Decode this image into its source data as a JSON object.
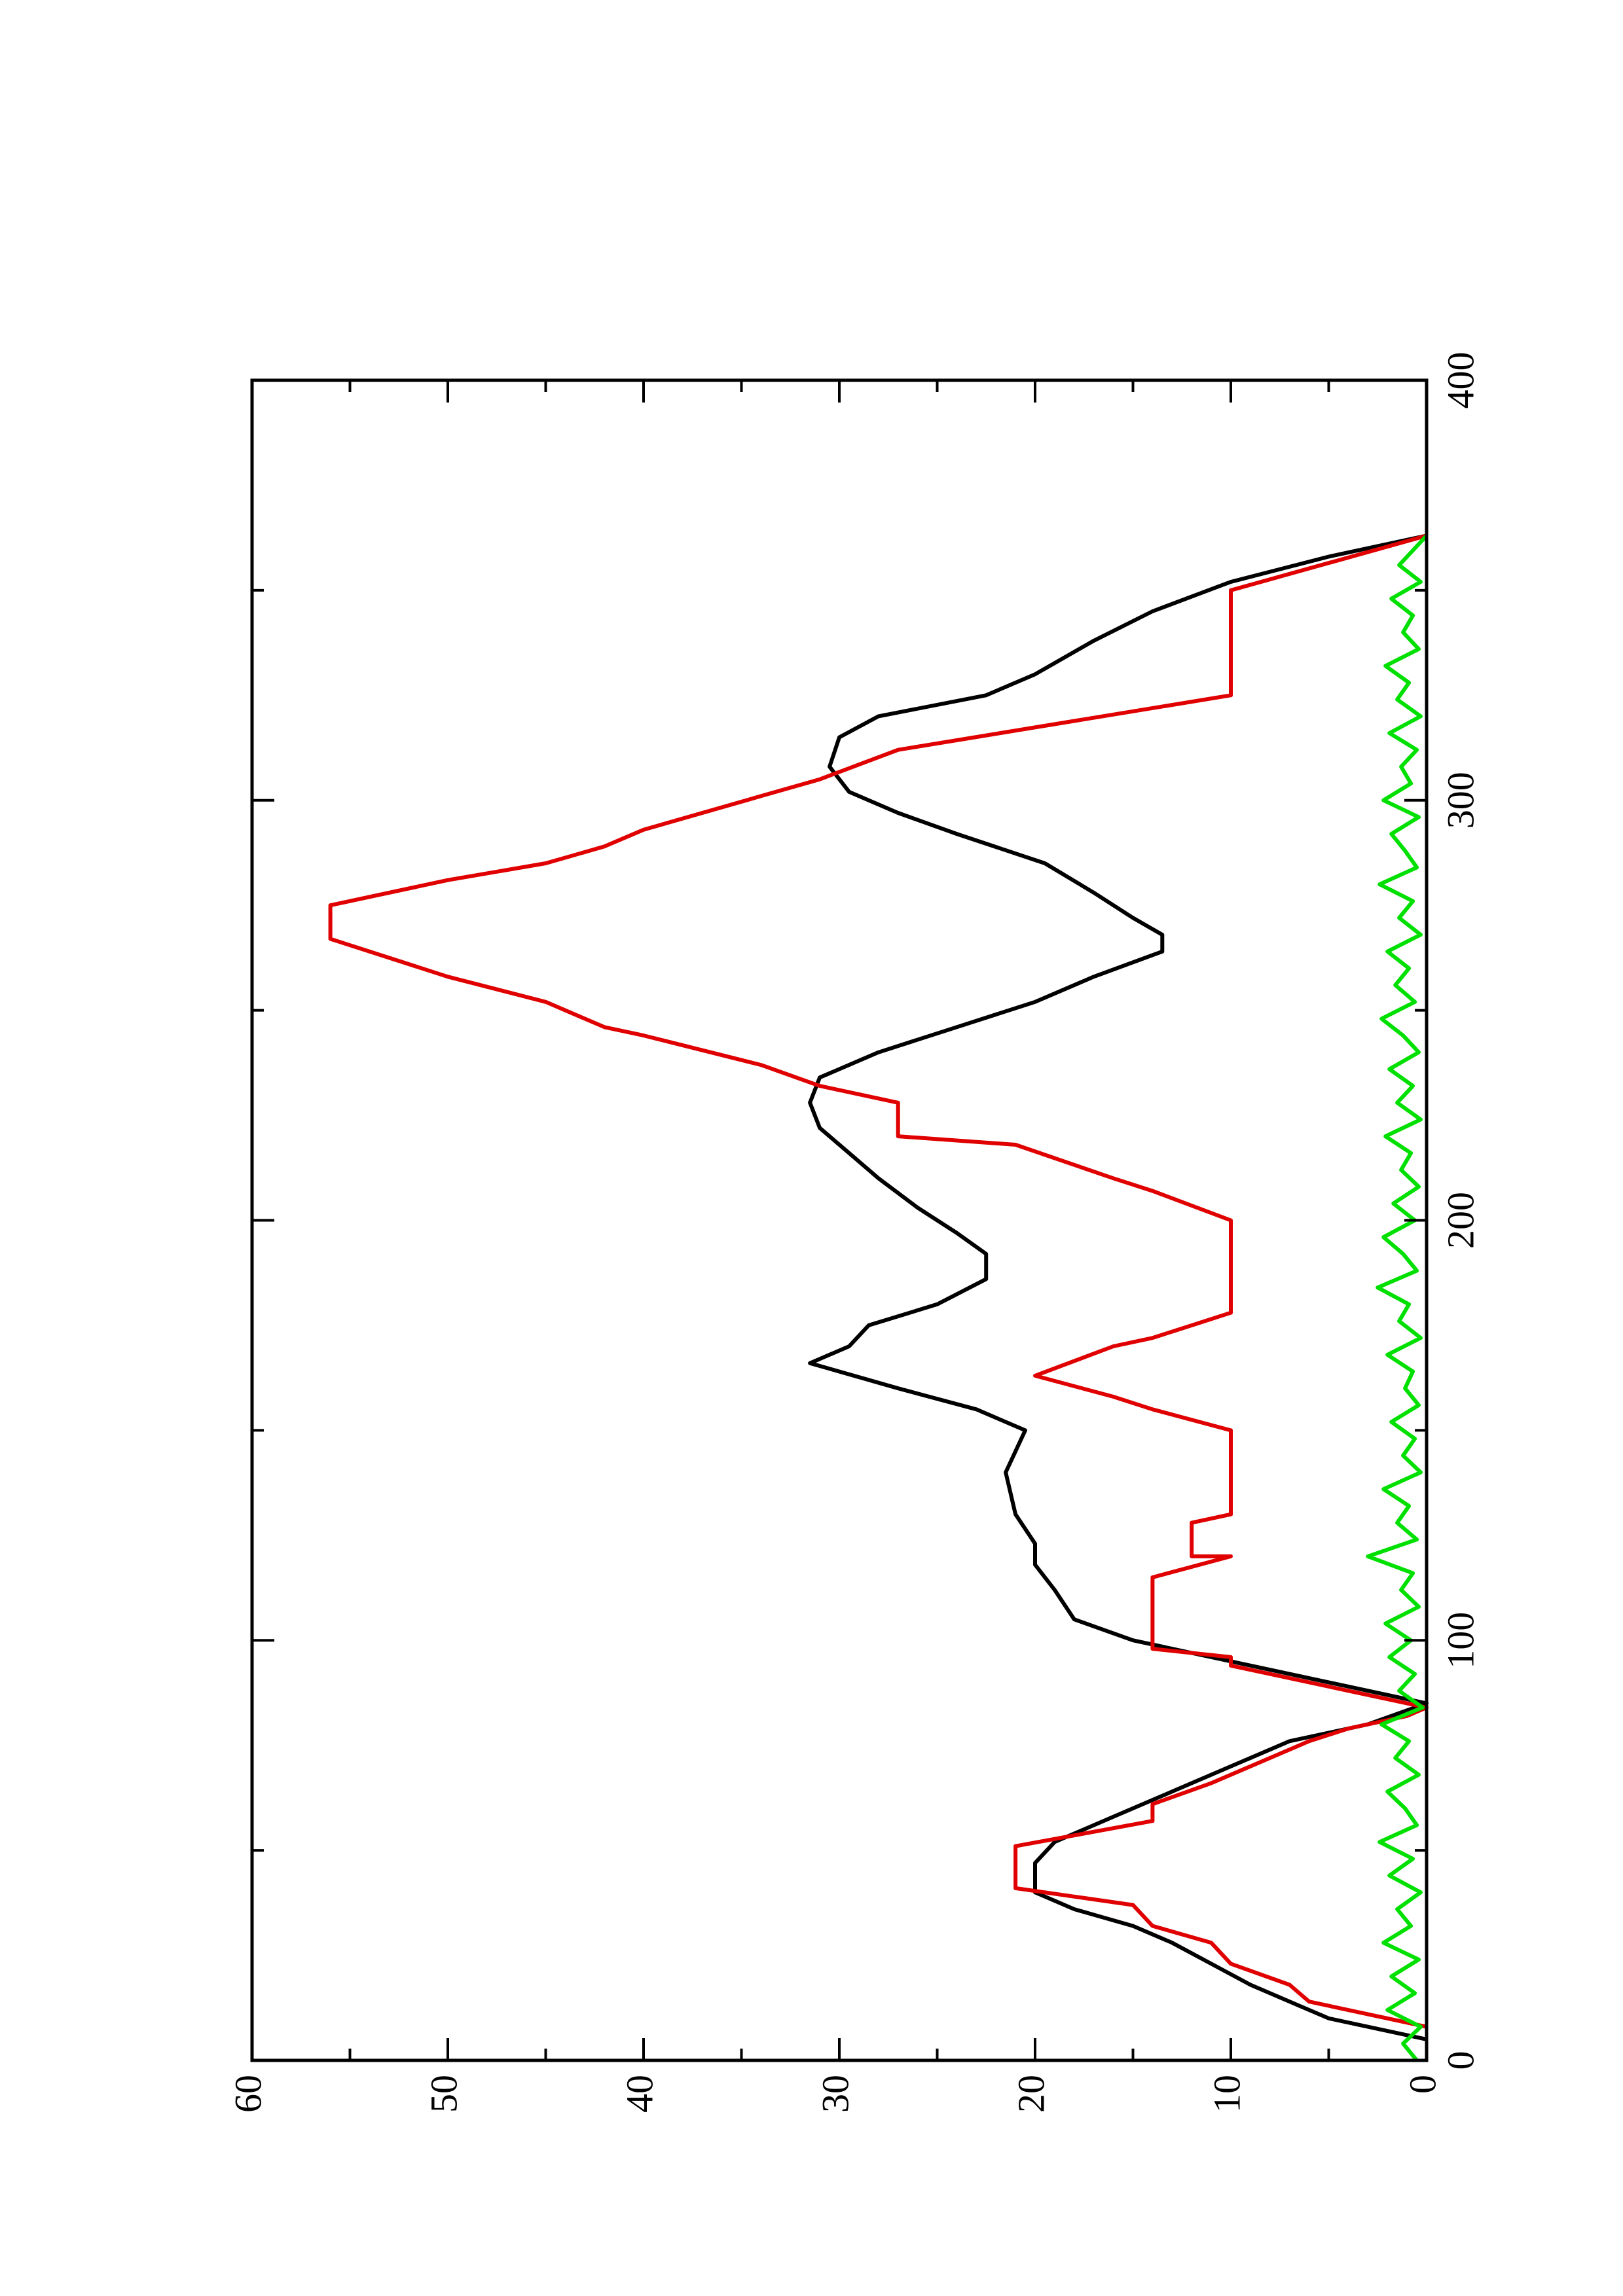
{
  "chart_data": {
    "type": "line",
    "xlim": [
      0,
      400
    ],
    "xticks": [
      0,
      100,
      200,
      300,
      400
    ],
    "xminorticks": [
      50,
      150,
      250,
      350
    ],
    "ylim": [
      0,
      60
    ],
    "yticks": [
      0,
      10,
      20,
      30,
      40,
      50,
      60
    ],
    "yminorticks": [
      5,
      15,
      25,
      35,
      45,
      55
    ],
    "series": [
      {
        "color": "#000000",
        "x": [
          5,
          10,
          13,
          18,
          23,
          28,
          32,
          36,
          40,
          47,
          52,
          58,
          64,
          70,
          76,
          80,
          85,
          90,
          95,
          100,
          105,
          112,
          118,
          123,
          130,
          140,
          150,
          155,
          160,
          166,
          170,
          175,
          180,
          186,
          192,
          197,
          203,
          210,
          216,
          222,
          228,
          234,
          240,
          246,
          252,
          258,
          264,
          268,
          272,
          278,
          285,
          292,
          297,
          302,
          308,
          315,
          320,
          325,
          330,
          338,
          345,
          352,
          358,
          363
        ],
        "values": [
          0,
          5,
          6.5,
          9,
          11,
          13,
          15,
          18,
          20,
          20,
          19,
          16,
          13,
          10,
          7,
          3,
          0,
          5,
          10,
          15,
          18,
          19,
          20,
          20,
          21,
          21.5,
          20.5,
          23,
          27,
          31.5,
          29.5,
          28.5,
          25,
          22.5,
          22.5,
          24,
          26,
          28,
          29.5,
          31,
          31.5,
          31,
          28,
          24,
          20,
          17,
          13.5,
          13.5,
          15,
          17,
          19.5,
          24,
          27,
          29.5,
          30.5,
          30,
          28,
          22.5,
          20,
          17,
          14,
          10,
          5,
          0
        ]
      },
      {
        "color": "#e00000",
        "x": [
          8,
          14,
          18,
          23,
          28,
          32,
          37,
          41,
          51,
          57,
          61,
          66,
          76,
          79,
          82,
          84,
          94,
          96,
          98,
          115,
          120,
          120,
          128,
          130,
          150,
          155,
          158,
          163,
          170,
          172,
          178,
          200,
          207,
          210,
          218,
          220,
          228,
          232,
          237,
          244,
          246,
          252,
          258,
          267,
          275,
          281,
          285,
          289,
          293,
          301,
          305,
          312,
          325,
          350,
          363
        ],
        "values": [
          0,
          6,
          7,
          10,
          11,
          14,
          15,
          21,
          21,
          14,
          14,
          11,
          6,
          4,
          1,
          0,
          10,
          10,
          14,
          14,
          10,
          12,
          12,
          10,
          10,
          14,
          16,
          20,
          16,
          14,
          10,
          10,
          14,
          16,
          21,
          27,
          27,
          31,
          34,
          40,
          42,
          45,
          50,
          56,
          56,
          50,
          45,
          42,
          40,
          34,
          31,
          27,
          10,
          10,
          0
        ]
      },
      {
        "color": "#00e000",
        "x": [
          0,
          4,
          8,
          12,
          16,
          20,
          24,
          28,
          32,
          36,
          40,
          44,
          48,
          52,
          56,
          60,
          64,
          68,
          72,
          76,
          80,
          84,
          88,
          92,
          96,
          100,
          104,
          108,
          112,
          116,
          120,
          124,
          128,
          132,
          136,
          140,
          144,
          148,
          152,
          156,
          160,
          164,
          168,
          172,
          176,
          180,
          184,
          188,
          192,
          196,
          200,
          204,
          208,
          212,
          216,
          220,
          224,
          228,
          232,
          236,
          240,
          244,
          248,
          252,
          256,
          260,
          264,
          268,
          272,
          276,
          280,
          284,
          288,
          292,
          296,
          300,
          304,
          308,
          312,
          316,
          320,
          324,
          328,
          332,
          336,
          340,
          344,
          348,
          352,
          356,
          360,
          363
        ],
        "values": [
          0.5,
          1.2,
          0.3,
          2,
          0.6,
          1.8,
          0.4,
          2.2,
          0.8,
          1.5,
          0.3,
          1.9,
          0.7,
          2.4,
          0.5,
          1.1,
          2,
          0.4,
          1.6,
          0.9,
          2.3,
          0.2,
          1.4,
          0.6,
          1.9,
          0.8,
          2.1,
          0.4,
          1.3,
          0.7,
          3,
          0.5,
          1.5,
          0.9,
          2.2,
          0.3,
          1.2,
          0.6,
          1.8,
          0.4,
          1.1,
          0.7,
          2,
          0.3,
          1.4,
          0.9,
          2.5,
          0.5,
          1.2,
          2.2,
          0.6,
          1.7,
          0.4,
          1.3,
          0.8,
          2.1,
          0.3,
          1.5,
          0.7,
          1.9,
          0.4,
          1.2,
          2.3,
          0.6,
          1.6,
          0.9,
          2,
          0.3,
          1.4,
          0.7,
          2.4,
          0.5,
          1.1,
          1.8,
          0.4,
          2.2,
          0.8,
          1.3,
          0.5,
          1.9,
          0.3,
          1.5,
          0.9,
          2.1,
          0.4,
          1.2,
          0.7,
          1.8,
          0.3,
          1.4,
          0.6,
          0
        ]
      }
    ]
  }
}
